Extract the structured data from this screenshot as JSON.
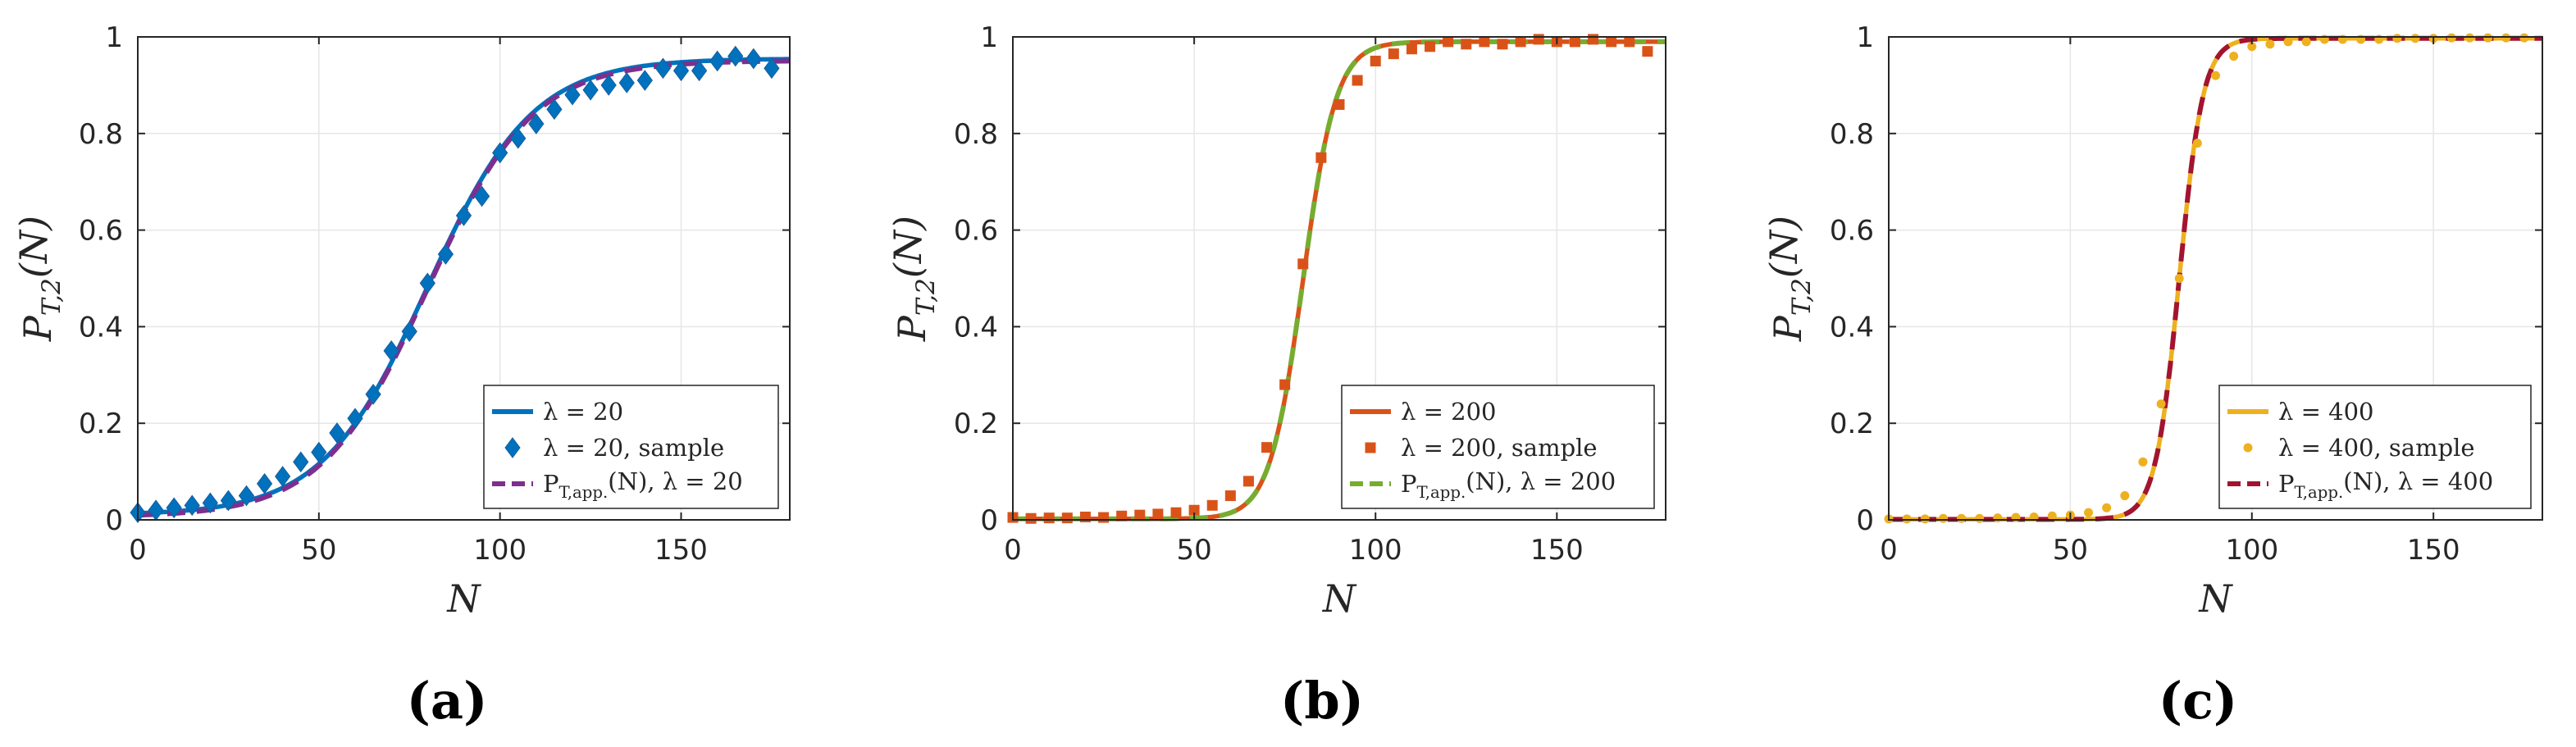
{
  "chart_data": [
    {
      "type": "line",
      "panel_label": "(a)",
      "xlabel": "N",
      "ylabel": "P_{T,2}(N)",
      "ylabel_main": "P",
      "ylabel_sub": "T,2",
      "ylabel_tail": "(N)",
      "xlim": [
        0,
        180
      ],
      "ylim": [
        0,
        1
      ],
      "xticks": [
        0,
        50,
        100,
        150
      ],
      "yticks": [
        0,
        0.2,
        0.4,
        0.6,
        0.8,
        1
      ],
      "grid": true,
      "legend_position": "bottom-right",
      "curve_params": {
        "center": 80,
        "scale": 14.5,
        "low": 0.01,
        "high": 0.955
      },
      "series": [
        {
          "name": "λ = 20",
          "kind": "line",
          "color": "#0072BD",
          "dash": "solid"
        },
        {
          "name": "λ = 20, sample",
          "kind": "marker",
          "marker": "diamond",
          "color": "#0072BD",
          "x": [
            0,
            5,
            10,
            15,
            20,
            25,
            30,
            35,
            40,
            45,
            50,
            55,
            60,
            65,
            70,
            75,
            80,
            85,
            90,
            95,
            100,
            105,
            110,
            115,
            120,
            125,
            130,
            135,
            140,
            145,
            150,
            155,
            160,
            165,
            170,
            175
          ],
          "y": [
            0.015,
            0.02,
            0.025,
            0.03,
            0.035,
            0.04,
            0.05,
            0.075,
            0.09,
            0.12,
            0.14,
            0.18,
            0.21,
            0.26,
            0.35,
            0.39,
            0.49,
            0.55,
            0.63,
            0.67,
            0.76,
            0.79,
            0.82,
            0.85,
            0.88,
            0.89,
            0.9,
            0.905,
            0.91,
            0.935,
            0.93,
            0.93,
            0.95,
            0.96,
            0.955,
            0.935
          ]
        },
        {
          "name": "P_{T,app.}(N), λ = 20",
          "label_main": "P",
          "label_sub": "T,app.",
          "label_tail": "(N), λ = 20",
          "kind": "line",
          "color": "#7E2F8E",
          "dash": "dashed"
        }
      ]
    },
    {
      "type": "line",
      "panel_label": "(b)",
      "xlabel": "N",
      "ylabel": "P_{T,2}(N)",
      "ylabel_main": "P",
      "ylabel_sub": "T,2",
      "ylabel_tail": "(N)",
      "xlim": [
        0,
        180
      ],
      "ylim": [
        0,
        1
      ],
      "xticks": [
        0,
        50,
        100,
        150
      ],
      "yticks": [
        0,
        0.2,
        0.4,
        0.6,
        0.8,
        1
      ],
      "grid": true,
      "legend_position": "bottom-right",
      "curve_params": {
        "center": 80,
        "scale": 4.6,
        "low": 0.002,
        "high": 0.99
      },
      "series": [
        {
          "name": "λ = 200",
          "kind": "line",
          "color": "#D95319",
          "dash": "solid"
        },
        {
          "name": "λ = 200, sample",
          "kind": "marker",
          "marker": "square",
          "color": "#D95319",
          "x": [
            0,
            5,
            10,
            15,
            20,
            25,
            30,
            35,
            40,
            45,
            50,
            55,
            60,
            65,
            70,
            75,
            80,
            85,
            90,
            95,
            100,
            105,
            110,
            115,
            120,
            125,
            130,
            135,
            140,
            145,
            150,
            155,
            160,
            165,
            170,
            175
          ],
          "y": [
            0.005,
            0.003,
            0.004,
            0.004,
            0.006,
            0.005,
            0.008,
            0.01,
            0.012,
            0.015,
            0.02,
            0.03,
            0.05,
            0.08,
            0.15,
            0.28,
            0.53,
            0.75,
            0.86,
            0.91,
            0.95,
            0.965,
            0.975,
            0.98,
            0.99,
            0.985,
            0.99,
            0.985,
            0.99,
            0.995,
            0.99,
            0.99,
            0.995,
            0.99,
            0.99,
            0.97
          ]
        },
        {
          "name": "P_{T,app.}(N), λ = 200",
          "label_main": "P",
          "label_sub": "T,app.",
          "label_tail": "(N), λ = 200",
          "kind": "line",
          "color": "#77AC30",
          "dash": "dashed"
        }
      ]
    },
    {
      "type": "line",
      "panel_label": "(c)",
      "xlabel": "N",
      "ylabel": "P_{T,2}(N)",
      "ylabel_main": "P",
      "ylabel_sub": "T,2",
      "ylabel_tail": "(N)",
      "xlim": [
        0,
        180
      ],
      "ylim": [
        0,
        1
      ],
      "xticks": [
        0,
        50,
        100,
        150
      ],
      "yticks": [
        0,
        0.2,
        0.4,
        0.6,
        0.8,
        1
      ],
      "grid": true,
      "legend_position": "bottom-right",
      "curve_params": {
        "center": 80,
        "scale": 3.3,
        "low": 0.001,
        "high": 0.997
      },
      "series": [
        {
          "name": "λ = 400",
          "kind": "line",
          "color": "#EDB120",
          "dash": "solid"
        },
        {
          "name": "λ = 400, sample",
          "kind": "marker",
          "marker": "circle",
          "color": "#EDB120",
          "x": [
            0,
            5,
            10,
            15,
            20,
            25,
            30,
            35,
            40,
            45,
            50,
            55,
            60,
            65,
            70,
            75,
            80,
            85,
            90,
            95,
            100,
            105,
            110,
            115,
            120,
            125,
            130,
            135,
            140,
            145,
            150,
            155,
            160,
            165,
            170,
            175
          ],
          "y": [
            0.002,
            0.002,
            0.002,
            0.003,
            0.003,
            0.003,
            0.004,
            0.005,
            0.006,
            0.008,
            0.01,
            0.015,
            0.025,
            0.05,
            0.12,
            0.24,
            0.5,
            0.78,
            0.92,
            0.96,
            0.98,
            0.985,
            0.99,
            0.99,
            0.995,
            0.995,
            0.995,
            0.995,
            0.997,
            0.997,
            0.997,
            0.998,
            0.998,
            0.998,
            0.998,
            0.998
          ]
        },
        {
          "name": "P_{T,app.}(N), λ = 400",
          "label_main": "P",
          "label_sub": "T,app.",
          "label_tail": "(N), λ = 400",
          "kind": "line",
          "color": "#A2142F",
          "dash": "dashed"
        }
      ]
    }
  ]
}
